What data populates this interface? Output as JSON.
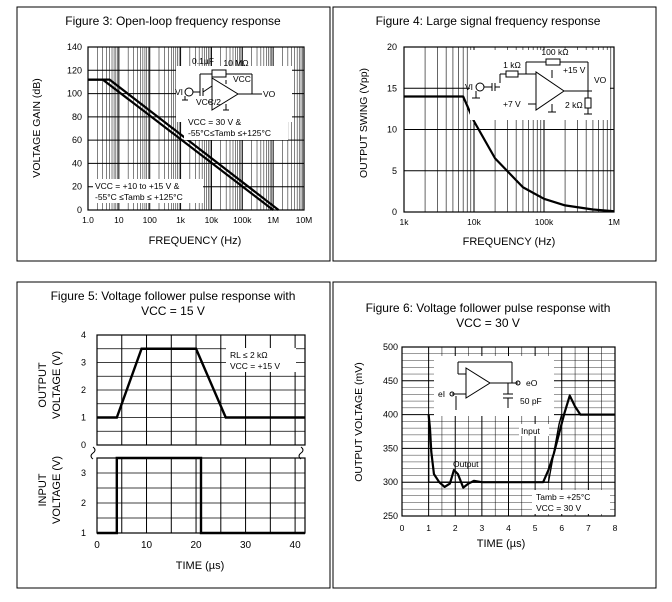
{
  "chart_data": [
    {
      "type": "line",
      "title": "Figure 3: Open-loop frequency response",
      "xlabel": "FREQUENCY (Hz)",
      "ylabel": "VOLTAGE GAIN (dB)",
      "x_scale": "log",
      "x_ticks": [
        "1.0",
        "10",
        "100",
        "1k",
        "10k",
        "100k",
        "1M",
        "10M"
      ],
      "y_ticks": [
        "0",
        "20",
        "40",
        "60",
        "80",
        "100",
        "120",
        "140"
      ],
      "xlim": [
        1,
        10000000
      ],
      "ylim": [
        0,
        140
      ],
      "series": [
        {
          "x": [
            1,
            3,
            1000000
          ],
          "y": [
            112,
            112,
            0
          ]
        },
        {
          "x": [
            1,
            5,
            1500000
          ],
          "y": [
            112,
            112,
            0
          ]
        }
      ],
      "annotations": [
        "VCC = +10 to +15 V &",
        "-55°C ≤Tamb ≤ +125°C",
        "VCC = 30 V &",
        "-55°C≤Tamb ≤+125°C",
        "10 MΩ",
        "0.1µF",
        "VCC",
        "VCC/2",
        "VI",
        "VO"
      ]
    },
    {
      "type": "line",
      "title": "Figure 4: Large signal frequency response",
      "xlabel": "FREQUENCY (Hz)",
      "ylabel": "OUTPUT SWING (Vpp)",
      "x_scale": "log",
      "x_ticks": [
        "1k",
        "10k",
        "100k",
        "1M"
      ],
      "y_ticks": [
        "0",
        "5",
        "10",
        "15",
        "20"
      ],
      "xlim": [
        1000,
        1000000
      ],
      "ylim": [
        0,
        20
      ],
      "series": [
        {
          "x": [
            1000,
            7000,
            10000,
            20000,
            50000,
            100000,
            200000,
            500000,
            1000000
          ],
          "y": [
            14,
            14,
            11,
            6.5,
            3,
            1.6,
            0.8,
            0.3,
            0.1
          ]
        }
      ],
      "annotations": [
        "100 kΩ",
        "1 kΩ",
        "+15 V",
        "+7 V",
        "2 kΩ",
        "VI",
        "VO"
      ]
    },
    {
      "type": "line",
      "title": "Figure 5: Voltage follower pulse response with",
      "subtitle": "VCC = 15 V",
      "xlabel": "TIME (µs)",
      "ylabel_top_1": "OUTPUT",
      "ylabel_top_2": "VOLTAGE (V)",
      "ylabel_bottom_1": "INPUT",
      "ylabel_bottom_2": "VOLTAGE (V)",
      "x_ticks": [
        "0",
        "10",
        "20",
        "30",
        "40"
      ],
      "y_ticks_top": [
        "0",
        "1",
        "2",
        "3",
        "4"
      ],
      "y_ticks_bottom": [
        "1",
        "2",
        "3"
      ],
      "xlim": [
        0,
        42
      ],
      "ylim_top": [
        0,
        4
      ],
      "ylim_bottom": [
        1,
        3.5
      ],
      "series": [
        {
          "x": [
            0,
            4,
            9,
            20,
            26,
            42
          ],
          "y": [
            1,
            1,
            3.5,
            3.5,
            1,
            1
          ]
        },
        {
          "x": [
            0,
            4,
            4,
            21,
            21,
            42
          ],
          "y": [
            1,
            1,
            3.5,
            3.5,
            1,
            1
          ]
        }
      ],
      "annotations": [
        "RL ≤ 2 kΩ",
        "VCC = +15 V"
      ]
    },
    {
      "type": "line",
      "title": "Figure 6: Voltage follower pulse response with",
      "subtitle": "VCC = 30 V",
      "xlabel": "TIME (µs)",
      "ylabel": "OUTPUT VOLTAGE (mV)",
      "x_ticks": [
        "0",
        "1",
        "2",
        "3",
        "4",
        "5",
        "6",
        "7",
        "8"
      ],
      "y_ticks": [
        "250",
        "300",
        "350",
        "400",
        "450",
        "500"
      ],
      "xlim": [
        0,
        8
      ],
      "ylim": [
        250,
        500
      ],
      "series": [
        {
          "x": [
            1.0,
            1.05,
            1.1,
            1.2,
            1.4,
            1.6,
            1.8,
            1.95,
            2.1,
            2.3,
            2.5,
            2.7,
            3.0,
            4.0,
            5.0,
            5.3,
            5.5,
            5.7,
            5.9,
            6.1,
            6.3,
            6.5,
            6.7,
            7.0,
            7.5,
            8.0
          ],
          "y": [
            400,
            380,
            345,
            312,
            300,
            293,
            298,
            318,
            312,
            292,
            298,
            302,
            300,
            300,
            300,
            300,
            318,
            342,
            372,
            402,
            428,
            412,
            400,
            400,
            400,
            400
          ]
        },
        {
          "x": [
            1.0,
            1.0,
            2.0,
            3.0,
            4.0,
            5.0,
            5.5,
            5.9,
            6.0,
            6.2,
            7.0,
            8.0
          ],
          "y": [
            400,
            300,
            300,
            300,
            300,
            300,
            300,
            386,
            400,
            400,
            400,
            400
          ]
        }
      ],
      "annotations": [
        "Output",
        "Input",
        "Tamb = +25°C",
        "VCC = 30 V",
        "eI",
        "eO",
        "50 pF"
      ]
    }
  ]
}
